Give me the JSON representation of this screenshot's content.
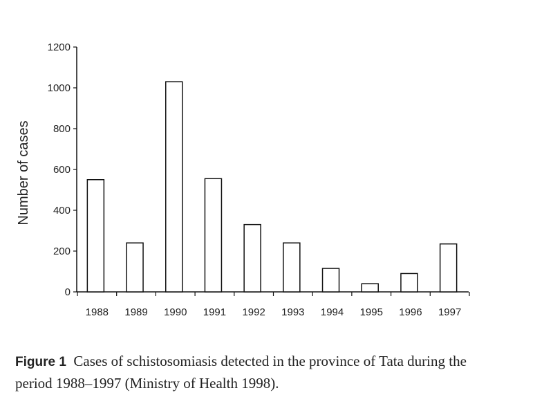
{
  "chart_data": {
    "type": "bar",
    "categories": [
      "1988",
      "1989",
      "1990",
      "1991",
      "1992",
      "1993",
      "1994",
      "1995",
      "1996",
      "1997"
    ],
    "values": [
      550,
      240,
      1030,
      555,
      330,
      240,
      115,
      40,
      90,
      235
    ],
    "title": "",
    "xlabel": "",
    "ylabel": "Number of cases",
    "ylim": [
      0,
      1200
    ],
    "yticks": [
      "0",
      "200",
      "400",
      "600",
      "800",
      "1000",
      "1200"
    ],
    "grid": false,
    "bar_fill": "#ffffff",
    "bar_stroke": "#111111"
  },
  "caption": {
    "label": "Figure 1",
    "text": "Cases of schistosomiasis detected in the province of Tata during the period 1988–1997 (Ministry of Health 1998)."
  }
}
